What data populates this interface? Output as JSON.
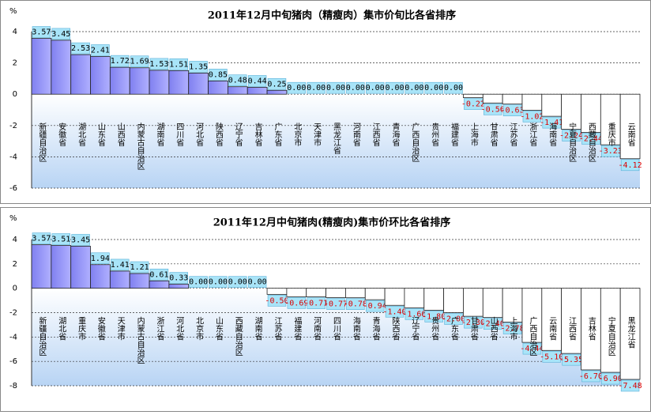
{
  "chart_data": [
    {
      "type": "bar",
      "title": "2011年12月中旬猪肉（精瘦肉）集市价旬比各省排序",
      "y_label": "%",
      "categories": [
        "新疆自治区",
        "安徽省",
        "湖北省",
        "山东省",
        "山西省",
        "内蒙古自治区",
        "湖南省",
        "四川省",
        "河北省",
        "陕西省",
        "辽宁省",
        "吉林省",
        "广东省",
        "北京市",
        "天津市",
        "黑龙江省",
        "河南省",
        "江西省",
        "青海省",
        "广西自治区",
        "贵州省",
        "福建省",
        "上海市",
        "甘肃省",
        "江苏省",
        "浙江省",
        "海南省",
        "宁夏自治区",
        "西藏自治区",
        "重庆市",
        "云南省"
      ],
      "values": [
        3.57,
        3.45,
        2.53,
        2.41,
        1.72,
        1.69,
        1.53,
        1.51,
        1.35,
        0.85,
        0.48,
        0.44,
        0.25,
        0,
        0,
        0,
        0,
        0,
        0,
        0,
        0,
        0,
        -0.22,
        -0.56,
        -0.63,
        -1.02,
        -1.41,
        -2.24,
        -2.44,
        -3.23,
        -4.12
      ],
      "value_labels": [
        "3.57",
        "3.45",
        "2.53",
        "2.41",
        "1.72",
        "1.69",
        "1.53",
        "1.51",
        "1.35",
        "0.85",
        "0.48",
        "0.44",
        "0.25",
        "0.00",
        "0.00",
        "0.00",
        "0.00",
        "0.00",
        "0.00",
        "0.00",
        "0.00",
        "0.00",
        "-0.22",
        "-0.56",
        "-0.63",
        "-1.02",
        "-1.41",
        "-2.24",
        "-2.44",
        "-3.23",
        "-4.12"
      ],
      "color": "#9999ff",
      "ylim": [
        -6,
        4
      ],
      "yticks": [
        -6,
        -4,
        -2,
        0,
        2,
        4
      ],
      "grid": true
    },
    {
      "type": "bar",
      "title": "2011年12月中旬猪肉(精瘦肉)集市价环比各省排序",
      "y_label": "%",
      "categories": [
        "新疆自治区",
        "湖北省",
        "重庆市",
        "安徽省",
        "天津市",
        "内蒙古自治区",
        "浙江省",
        "河北省",
        "北京市",
        "山东省",
        "西藏自治区",
        "湖南省",
        "江苏省",
        "福建省",
        "河南省",
        "四川省",
        "海南省",
        "青海省",
        "陕西省",
        "辽宁省",
        "贵州省",
        "广东省",
        "甘肃省",
        "山西省",
        "上海市",
        "广西自治区",
        "云南省",
        "江西省",
        "吉林省",
        "宁夏自治区",
        "黑龙江省"
      ],
      "values": [
        3.57,
        3.51,
        3.45,
        1.94,
        1.41,
        1.21,
        0.61,
        0.33,
        0,
        0,
        0,
        0,
        -0.5,
        -0.69,
        -0.71,
        -0.77,
        -0.78,
        -0.94,
        -1.4,
        -1.6,
        -1.8,
        -2.0,
        -2.3,
        -2.4,
        -2.78,
        -4.44,
        -5.1,
        -5.35,
        -6.7,
        -6.9,
        -7.48
      ],
      "value_labels": [
        "3.57",
        "3.51",
        "3.45",
        "1.94",
        "1.41",
        "1.21",
        "0.61",
        "0.33",
        "0.00",
        "0.00",
        "0.00",
        "0.00",
        "-0.50",
        "-0.69",
        "-0.71",
        "-0.77",
        "-0.78",
        "-0.94",
        "-1.40",
        "-1.60",
        "-1.80",
        "-2.00",
        "-2.30",
        "-2.40",
        "-2.78",
        "-4.44",
        "-5.10",
        "-5.35",
        "-6.70",
        "-6.90",
        "-7.48"
      ],
      "color": "#9999ff",
      "ylim": [
        -8,
        4
      ],
      "yticks": [
        -8,
        -6,
        -4,
        -2,
        0,
        2,
        4
      ],
      "grid": true
    }
  ]
}
